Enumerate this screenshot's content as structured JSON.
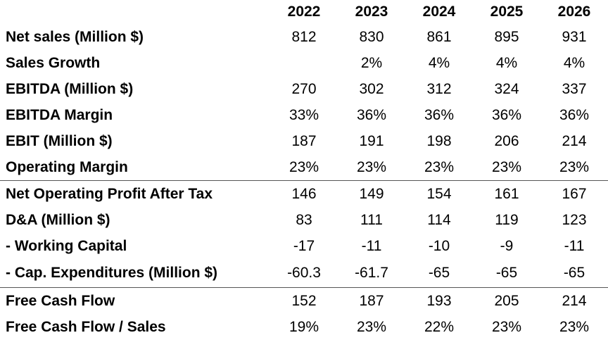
{
  "table": {
    "years": [
      "2022",
      "2023",
      "2024",
      "2025",
      "2026"
    ],
    "rows": [
      {
        "label": "Net sales (Million $)",
        "values": [
          "812",
          "830",
          "861",
          "895",
          "931"
        ]
      },
      {
        "label": "Sales Growth",
        "values": [
          "",
          "2%",
          "4%",
          "4%",
          "4%"
        ]
      },
      {
        "label": "EBITDA  (Million $)",
        "values": [
          "270",
          "302",
          "312",
          "324",
          "337"
        ]
      },
      {
        "label": "EBITDA Margin",
        "values": [
          "33%",
          "36%",
          "36%",
          "36%",
          "36%"
        ]
      },
      {
        "label": "EBIT  (Million $)",
        "values": [
          "187",
          "191",
          "198",
          "206",
          "214"
        ]
      },
      {
        "label": "Operating Margin",
        "values": [
          "23%",
          "23%",
          "23%",
          "23%",
          "23%"
        ]
      },
      {
        "label": "Net Operating Profit After Tax",
        "values": [
          "146",
          "149",
          "154",
          "161",
          "167"
        ]
      },
      {
        "label": "D&A (Million $)",
        "values": [
          "83",
          "111",
          "114",
          "119",
          "123"
        ]
      },
      {
        "label": "- Working Capital",
        "values": [
          "-17",
          "-11",
          "-10",
          "-9",
          "-11"
        ]
      },
      {
        "label": "- Cap. Expenditures (Million $)",
        "values": [
          "-60.3",
          "-61.7",
          "-65",
          "-65",
          "-65"
        ]
      },
      {
        "label": "Free Cash Flow",
        "values": [
          "152",
          "187",
          "193",
          "205",
          "214"
        ]
      },
      {
        "label": "Free Cash Flow / Sales",
        "values": [
          "19%",
          "23%",
          "22%",
          "23%",
          "23%"
        ]
      }
    ]
  }
}
